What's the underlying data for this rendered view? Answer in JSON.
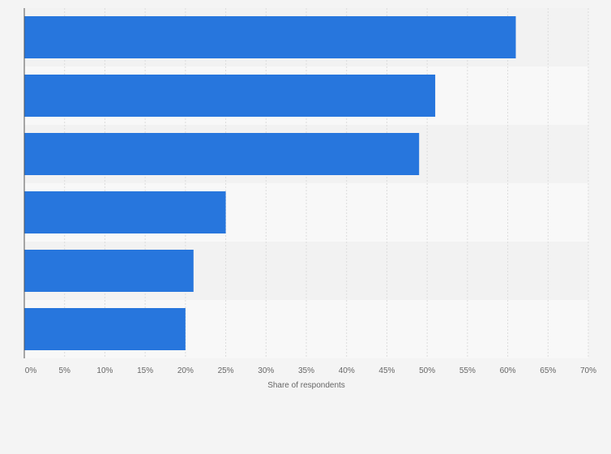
{
  "chart_data": {
    "type": "bar",
    "orientation": "horizontal",
    "categories": [
      "",
      "",
      "",
      "",
      "",
      ""
    ],
    "values": [
      61,
      51,
      49,
      25,
      21,
      20
    ],
    "value_unit": "%",
    "xlabel": "Share of respondents",
    "ylabel": "",
    "xlim": [
      0,
      70
    ],
    "ticks": [
      0,
      5,
      10,
      15,
      20,
      25,
      30,
      35,
      40,
      45,
      50,
      55,
      60,
      65,
      70
    ],
    "tick_labels": [
      "0%",
      "5%",
      "10%",
      "15%",
      "20%",
      "25%",
      "30%",
      "35%",
      "40%",
      "45%",
      "50%",
      "55%",
      "60%",
      "65%",
      "70%"
    ],
    "grid": true,
    "bar_color": "#2776dd",
    "band_colors": [
      "#f2f2f2",
      "#f8f8f8"
    ],
    "grid_color": "#dcdcdc",
    "axis_color": "#555555"
  }
}
